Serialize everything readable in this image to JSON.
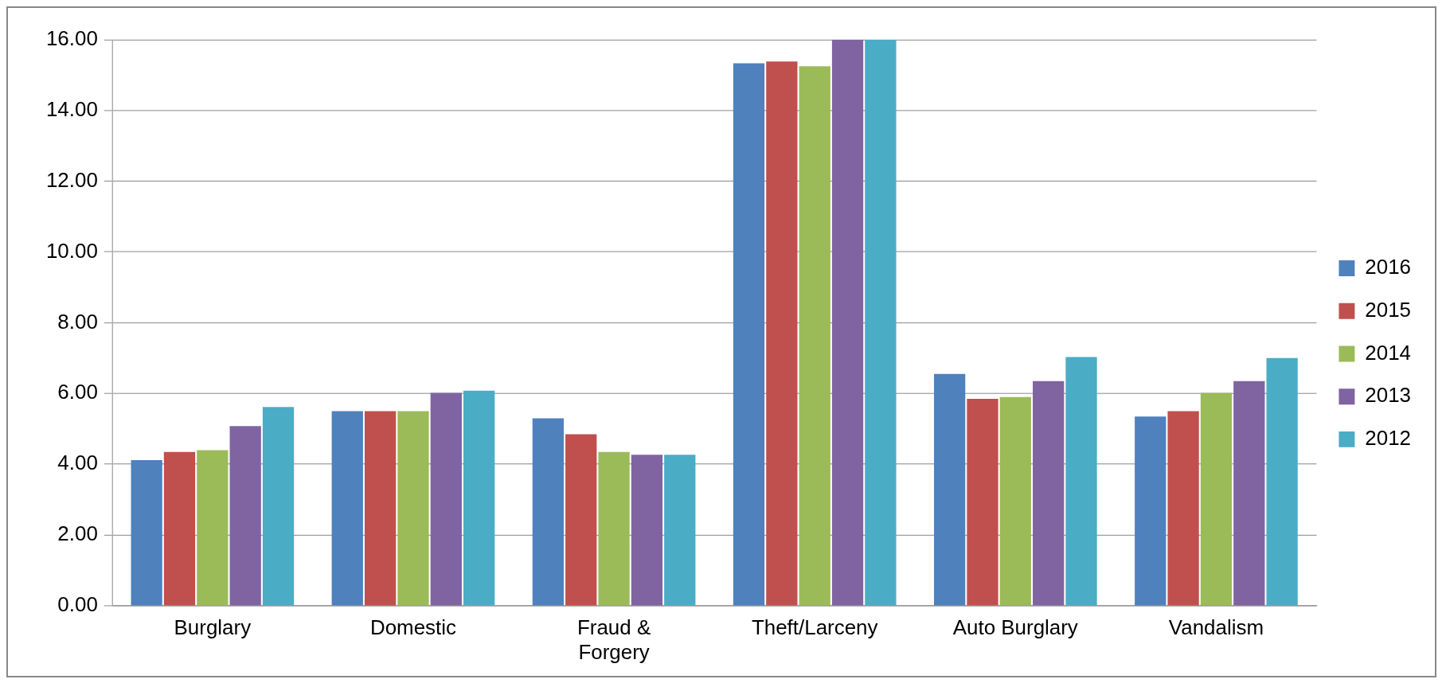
{
  "chart_data": {
    "type": "bar",
    "categories": [
      "Burglary",
      "Domestic",
      "Fraud & Forgery",
      "Theft/Larceny",
      "Auto Burglary",
      "Vandalism"
    ],
    "series": [
      {
        "name": "2016",
        "color": "#4f81bd",
        "values": [
          4.12,
          5.5,
          5.3,
          15.33,
          6.55,
          5.35
        ]
      },
      {
        "name": "2015",
        "color": "#c0504d",
        "values": [
          4.35,
          5.5,
          4.85,
          15.38,
          5.85,
          5.5
        ]
      },
      {
        "name": "2014",
        "color": "#9bbb59",
        "values": [
          4.4,
          5.5,
          4.35,
          15.25,
          5.9,
          6.02
        ]
      },
      {
        "name": "2013",
        "color": "#8064a2",
        "values": [
          5.08,
          6.02,
          4.27,
          16,
          6.35,
          6.35
        ]
      },
      {
        "name": "2012",
        "color": "#4bacc6",
        "values": [
          5.62,
          6.08,
          4.27,
          16,
          7.03,
          7.0
        ]
      }
    ],
    "ylim": [
      0,
      16
    ],
    "yticks": [
      {
        "value": 0,
        "label": "0.00"
      },
      {
        "value": 2,
        "label": "2.00"
      },
      {
        "value": 4,
        "label": "4.00"
      },
      {
        "value": 6,
        "label": "6.00"
      },
      {
        "value": 8,
        "label": "8.00"
      },
      {
        "value": 10,
        "label": "10.00"
      },
      {
        "value": 12,
        "label": "12.00"
      },
      {
        "value": 14,
        "label": "14.00"
      },
      {
        "value": 16,
        "label": "16.00"
      }
    ],
    "grid": "y",
    "legend": "right"
  }
}
